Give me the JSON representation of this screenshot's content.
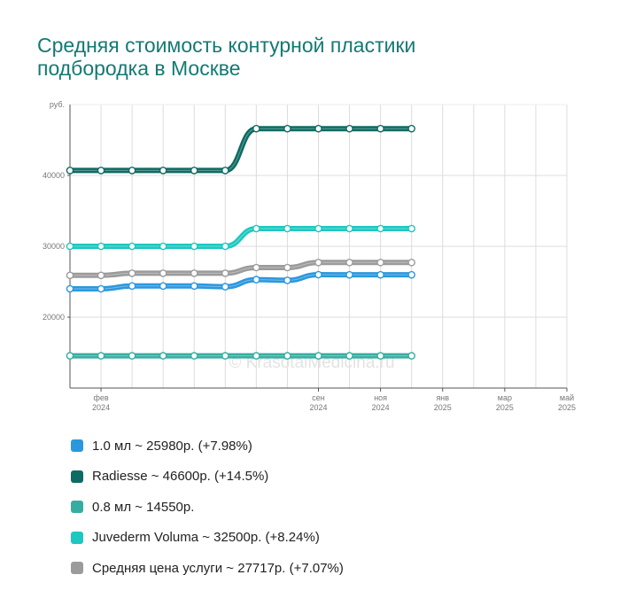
{
  "title_lines": [
    "Средняя стоимость контурной пластики",
    "подбородка в Москве"
  ],
  "watermark": "© KrasotaiMedicina.ru",
  "chart_data": {
    "type": "line",
    "title": "Средняя стоимость контурной пластики подбородка в Москве",
    "ylabel": "руб.",
    "ylim": [
      10000,
      50000
    ],
    "yticks": [
      20000,
      30000,
      40000
    ],
    "xlim": [
      "2024-01",
      "2025-05"
    ],
    "x": [
      "2024-01",
      "2024-02",
      "2024-03",
      "2024-04",
      "2024-05",
      "2024-06",
      "2024-07",
      "2024-08",
      "2024-09",
      "2024-10",
      "2024-11",
      "2024-12"
    ],
    "x_ticks": [
      {
        "month": "фев",
        "year": "2024"
      },
      {
        "month": "сен",
        "year": "2024"
      },
      {
        "month": "ноя",
        "year": "2024"
      },
      {
        "month": "янв",
        "year": "2025"
      },
      {
        "month": "мар",
        "year": "2025"
      },
      {
        "month": "май",
        "year": "2025"
      }
    ],
    "grid": true,
    "series": [
      {
        "name": "1.0 мл",
        "color": "#2b98de",
        "values": [
          24000,
          24000,
          24400,
          24400,
          24400,
          24300,
          25300,
          25200,
          26000,
          25980,
          25980,
          25980
        ]
      },
      {
        "name": "Radiesse",
        "color": "#0e6b63",
        "values": [
          40700,
          40700,
          40700,
          40700,
          40700,
          40700,
          46600,
          46600,
          46600,
          46600,
          46600,
          46600
        ]
      },
      {
        "name": "0.8 мл",
        "color": "#37ada1",
        "values": [
          14550,
          14550,
          14550,
          14550,
          14550,
          14550,
          14550,
          14550,
          14550,
          14550,
          14550,
          14550
        ]
      },
      {
        "name": "Juvederm Voluma",
        "color": "#1cc8c0",
        "values": [
          30000,
          30000,
          30000,
          30000,
          30000,
          30000,
          32500,
          32500,
          32500,
          32500,
          32500,
          32500
        ]
      },
      {
        "name": "Средняя цена услуги",
        "color": "#9b9b9b",
        "values": [
          25900,
          25900,
          26200,
          26200,
          26200,
          26200,
          27000,
          27000,
          27717,
          27717,
          27717,
          27717
        ]
      }
    ]
  },
  "legend": [
    {
      "label": "1.0 мл ~ 25980р. (+7.98%)",
      "color": "#2b98de"
    },
    {
      "label": "Radiesse ~ 46600р. (+14.5%)",
      "color": "#0e6b63"
    },
    {
      "label": "0.8 мл ~ 14550р.",
      "color": "#37ada1"
    },
    {
      "label": "Juvederm Voluma ~ 32500р. (+8.24%)",
      "color": "#1cc8c0"
    },
    {
      "label": "Средняя цена услуги ~ 27717р. (+7.07%)",
      "color": "#9b9b9b"
    }
  ]
}
